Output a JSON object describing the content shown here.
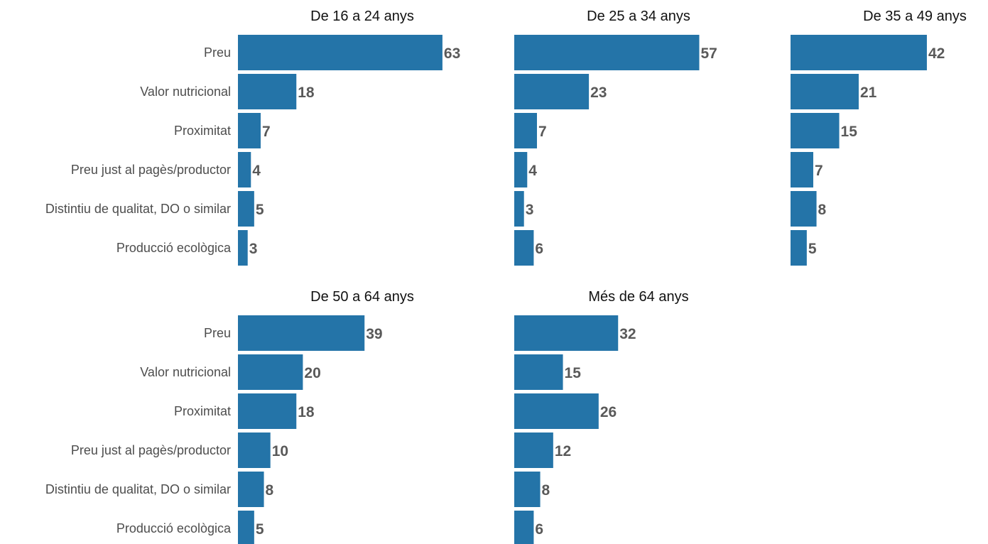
{
  "chart_data": {
    "type": "bar",
    "orientation": "horizontal",
    "facet": "small-multiples",
    "categories": [
      "Preu",
      "Valor nutricional",
      "Proximitat",
      "Preu just al pagès/productor",
      "Distintiu de qualitat, DO o similar",
      "Producció ecològica"
    ],
    "bar_color": "#2474a8",
    "xlim": [
      0,
      70
    ],
    "grid": false,
    "legend": "none",
    "panels": [
      {
        "title": "De 16 a 24 anys",
        "values": [
          63,
          18,
          7,
          4,
          5,
          3
        ]
      },
      {
        "title": "De 25 a 34 anys",
        "values": [
          57,
          23,
          7,
          4,
          3,
          6
        ]
      },
      {
        "title": "De 35 a 49 anys",
        "values": [
          42,
          21,
          15,
          7,
          8,
          5
        ]
      },
      {
        "title": "De 50 a 64 anys",
        "values": [
          39,
          20,
          18,
          10,
          8,
          5
        ]
      },
      {
        "title": "Més de 64 anys",
        "values": [
          32,
          15,
          26,
          12,
          8,
          6
        ]
      }
    ]
  }
}
